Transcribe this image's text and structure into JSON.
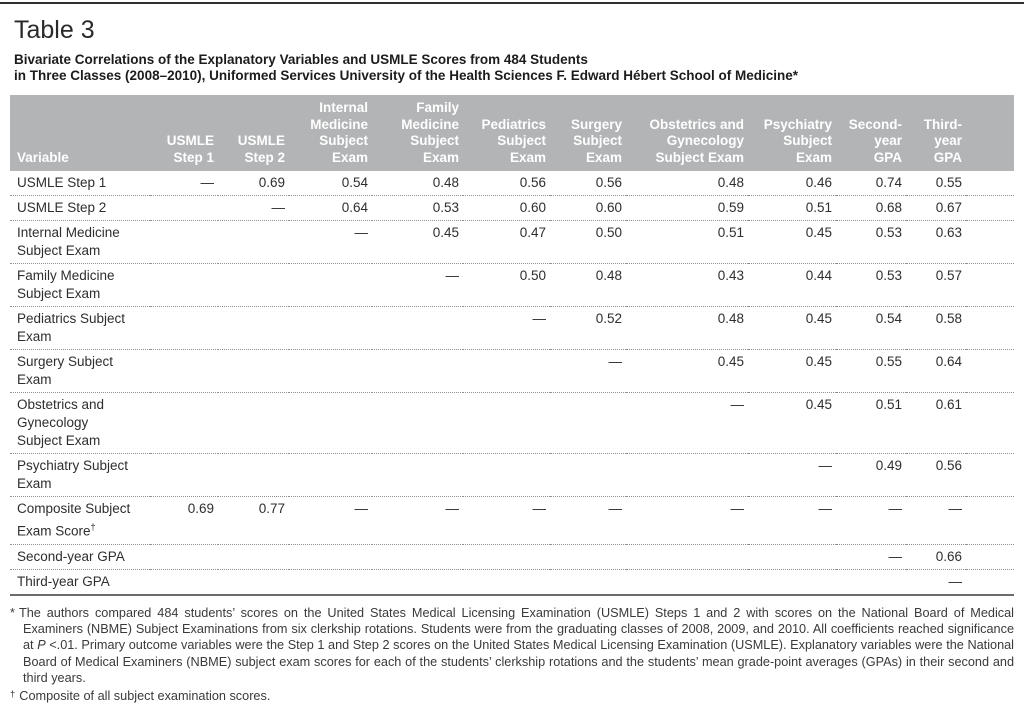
{
  "page": {
    "table_label": "Table 3",
    "title_line1": "Bivariate Correlations of the Explanatory Variables and USMLE Scores from 484 Students",
    "title_line2": "in Three Classes (2008–2010), Uniformed Services University of the Health Sciences F. Edward Hébert School of Medicine*"
  },
  "table": {
    "variable_header": "Variable",
    "columns": [
      {
        "id": "usmle-step-1",
        "lines": [
          "USMLE",
          "Step 1"
        ]
      },
      {
        "id": "usmle-step-2",
        "lines": [
          "USMLE",
          "Step 2"
        ]
      },
      {
        "id": "internal-medicine-subject-exam",
        "lines": [
          "Internal",
          "Medicine",
          "Subject",
          "Exam"
        ]
      },
      {
        "id": "family-medicine-subject-exam",
        "lines": [
          "Family",
          "Medicine",
          "Subject",
          "Exam"
        ]
      },
      {
        "id": "pediatrics-subject-exam",
        "lines": [
          "Pediatrics",
          "Subject",
          "Exam"
        ]
      },
      {
        "id": "surgery-subject-exam",
        "lines": [
          "Surgery",
          "Subject",
          "Exam"
        ]
      },
      {
        "id": "obstetrics-gynecology-subject-exam",
        "lines": [
          "Obstetrics and",
          "Gynecology",
          "Subject Exam"
        ]
      },
      {
        "id": "psychiatry-subject-exam",
        "lines": [
          "Psychiatry",
          "Subject",
          "Exam"
        ]
      },
      {
        "id": "second-year-gpa",
        "lines": [
          "Second-",
          "year",
          "GPA"
        ]
      },
      {
        "id": "third-year-gpa",
        "lines": [
          "Third-",
          "year",
          "GPA"
        ]
      }
    ],
    "rows": [
      {
        "label_lines": [
          "USMLE Step 1"
        ],
        "values": [
          "—",
          "0.69",
          "0.54",
          "0.48",
          "0.56",
          "0.56",
          "0.48",
          "0.46",
          "0.74",
          "0.55"
        ]
      },
      {
        "label_lines": [
          "USMLE Step 2"
        ],
        "values": [
          "",
          "—",
          "0.64",
          "0.53",
          "0.60",
          "0.60",
          "0.59",
          "0.51",
          "0.68",
          "0.67"
        ]
      },
      {
        "label_lines": [
          "Internal Medicine",
          "Subject Exam"
        ],
        "values": [
          "",
          "",
          "—",
          "0.45",
          "0.47",
          "0.50",
          "0.51",
          "0.45",
          "0.53",
          "0.63"
        ]
      },
      {
        "label_lines": [
          "Family Medicine",
          "Subject Exam"
        ],
        "values": [
          "",
          "",
          "",
          "—",
          "0.50",
          "0.48",
          "0.43",
          "0.44",
          "0.53",
          "0.57"
        ]
      },
      {
        "label_lines": [
          "Pediatrics Subject",
          "Exam"
        ],
        "values": [
          "",
          "",
          "",
          "",
          "—",
          "0.52",
          "0.48",
          "0.45",
          "0.54",
          "0.58"
        ]
      },
      {
        "label_lines": [
          "Surgery Subject",
          "Exam"
        ],
        "values": [
          "",
          "",
          "",
          "",
          "",
          "—",
          "0.45",
          "0.45",
          "0.55",
          "0.64"
        ]
      },
      {
        "label_lines": [
          "Obstetrics and",
          "Gynecology",
          "Subject Exam"
        ],
        "values": [
          "",
          "",
          "",
          "",
          "",
          "",
          "—",
          "0.45",
          "0.51",
          "0.61"
        ]
      },
      {
        "label_lines": [
          "Psychiatry Subject",
          "Exam"
        ],
        "values": [
          "",
          "",
          "",
          "",
          "",
          "",
          "",
          "—",
          "0.49",
          "0.56"
        ]
      },
      {
        "label_lines": [
          "Composite Subject",
          "Exam Score"
        ],
        "label_sup": "†",
        "values": [
          "0.69",
          "0.77",
          "—",
          "—",
          "—",
          "—",
          "—",
          "—",
          "—",
          "—"
        ]
      },
      {
        "label_lines": [
          "Second-year GPA"
        ],
        "values": [
          "",
          "",
          "",
          "",
          "",
          "",
          "",
          "",
          "—",
          "0.66"
        ]
      },
      {
        "label_lines": [
          "Third-year GPA"
        ],
        "values": [
          "",
          "",
          "",
          "",
          "",
          "",
          "",
          "",
          "",
          "—"
        ]
      }
    ]
  },
  "footnotes": {
    "star": {
      "marker": "*",
      "text_before_p": "The authors compared 484 students’ scores on the United States Medical Licensing Examination (USMLE) Steps 1 and 2 with scores on the National Board of Medical Examiners (NBME) Subject Examinations from six clerkship rotations. Students were from the graduating classes of 2008, 2009, and 2010. All coefficients reached significance at ",
      "p_italic": "P",
      "text_after_p": " <.01. Primary outcome variables were the Step 1 and Step 2 scores on the United States Medical Licensing Examination (USMLE). Explanatory variables were the National Board of Medical Examiners (NBME) subject exam scores for each of the students’ clerkship rotations and the students’ mean grade-point averages (GPAs) in their second and third years."
    },
    "dagger": {
      "marker": "†",
      "text": "Composite of all subject examination scores."
    }
  },
  "colors": {
    "header_background": "#b2b4b6",
    "header_text": "#ffffff",
    "body_text": "#2e2e2e",
    "table_bottom_border": "#696b6d",
    "row_divider": "#8e9092"
  }
}
